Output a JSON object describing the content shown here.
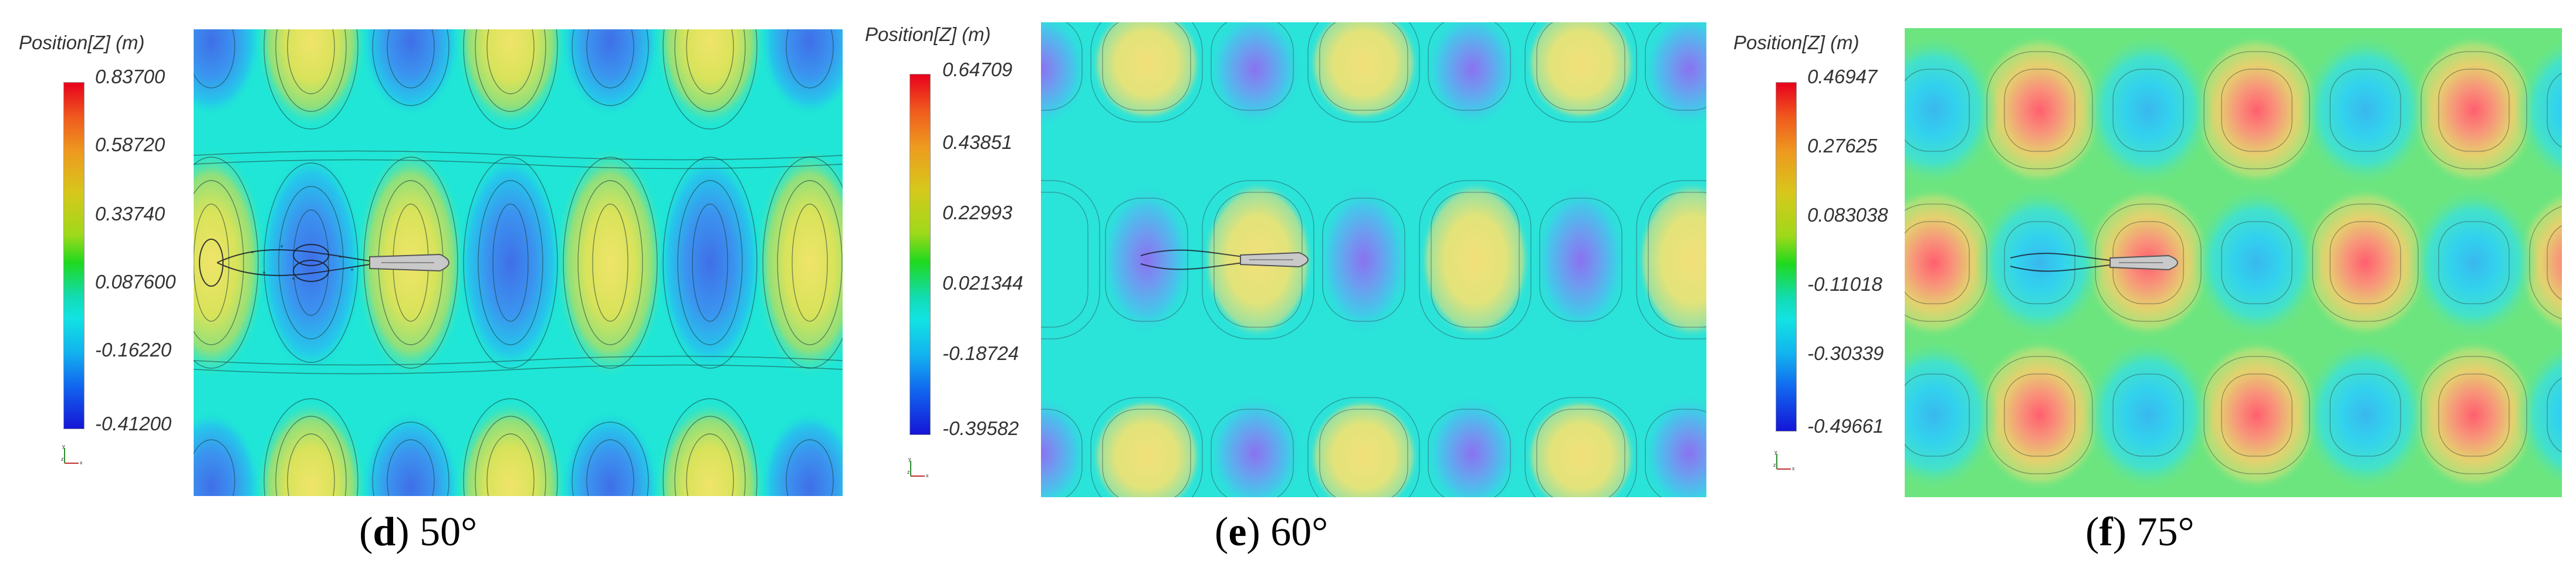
{
  "panels": [
    {
      "legend_title": "Position[Z] (m)",
      "ticks": [
        "0.83700",
        "0.58720",
        "0.33740",
        "0.087600",
        "-0.16220",
        "-0.41200"
      ],
      "caption_letter": "d",
      "caption_angle": "50°"
    },
    {
      "legend_title": "Position[Z] (m)",
      "ticks": [
        "0.64709",
        "0.43851",
        "0.22993",
        "0.021344",
        "-0.18724",
        "-0.39582"
      ],
      "caption_letter": "e",
      "caption_angle": "60°"
    },
    {
      "legend_title": "Position[Z] (m)",
      "ticks": [
        "0.46947",
        "0.27625",
        "0.083038",
        "-0.11018",
        "-0.30339",
        "-0.49661"
      ],
      "caption_letter": "f",
      "caption_angle": "75°"
    }
  ],
  "colors": {
    "background_d": "#1fe6d6",
    "background_e": "#2ae3d9",
    "background_f": "#6ce57f",
    "crest_yellow": "#e6e25a",
    "crest_red": "#ff6a6a",
    "trough_blue": "#4a87f0",
    "trough_violet": "#8a7ff0"
  }
}
